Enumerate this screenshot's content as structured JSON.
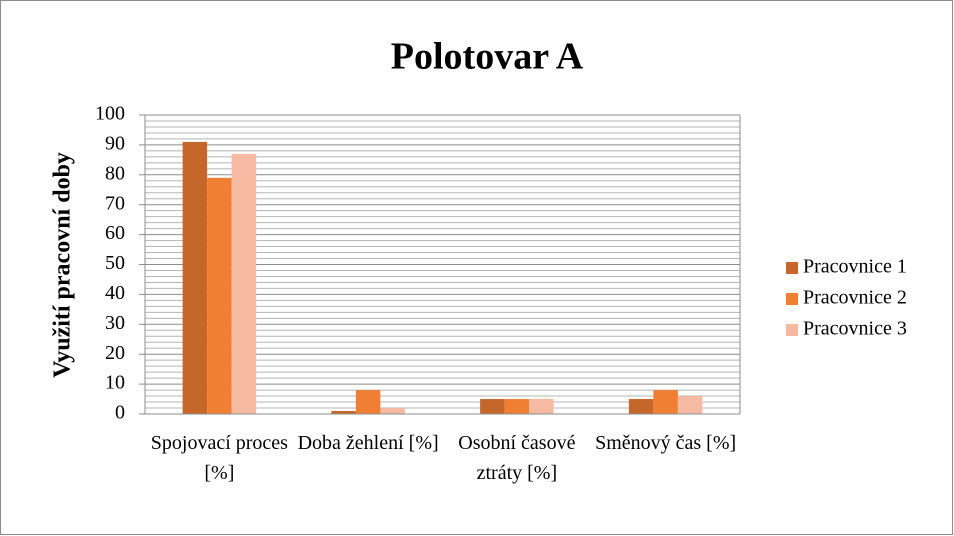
{
  "chart_data": {
    "type": "bar",
    "title": "Polotovar A",
    "ylabel": "Využití pracovní doby",
    "categories": [
      "Spojovací proces [%]",
      "Doba žehlení [%]",
      "Osobní časové ztráty [%]",
      "Směnový čas [%]"
    ],
    "series": [
      {
        "name": "Pracovnice 1",
        "color": "#c5662a",
        "values": [
          91,
          1,
          5,
          5
        ]
      },
      {
        "name": "Pracovnice 2",
        "color": "#f07f34",
        "values": [
          79,
          8,
          5,
          8
        ]
      },
      {
        "name": "Pracovnice 3",
        "color": "#f6b9a2",
        "values": [
          87,
          2,
          5,
          6
        ]
      }
    ],
    "ylim": [
      0,
      100
    ],
    "yticks": [
      0,
      10,
      20,
      30,
      40,
      50,
      60,
      70,
      80,
      90,
      100
    ],
    "grid": true,
    "minor_grid": true,
    "legend": "right"
  }
}
